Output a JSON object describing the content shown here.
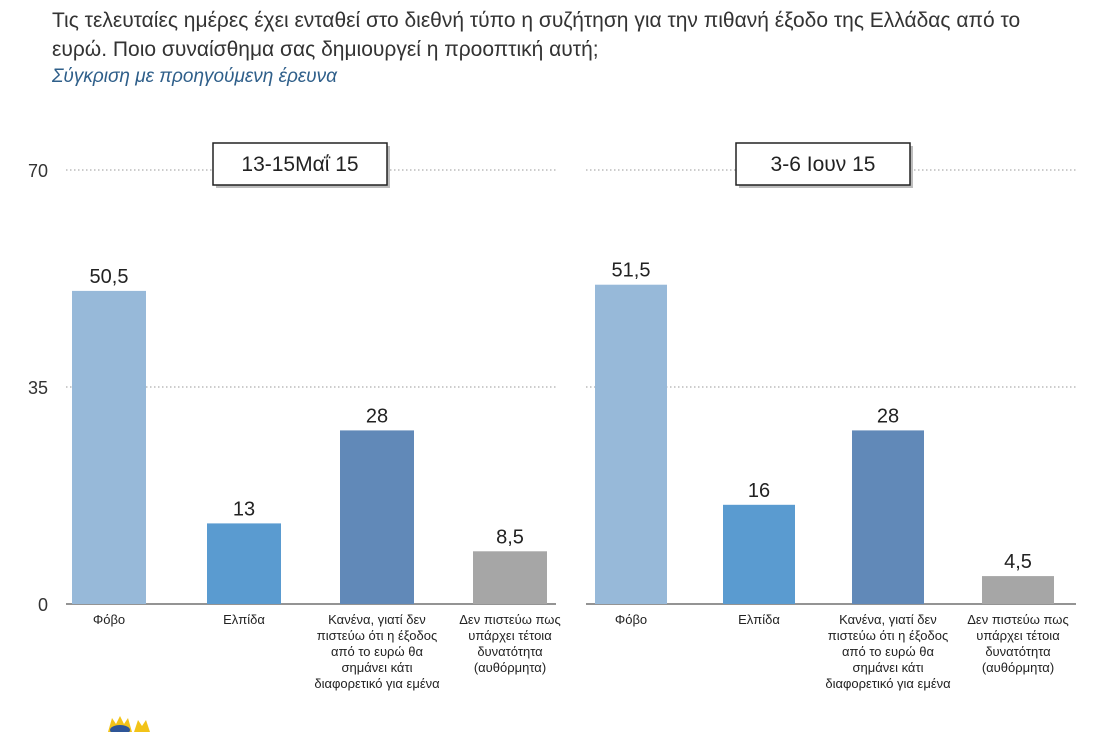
{
  "header": {
    "question": "Τις τελευταίες ημέρες έχει ενταθεί στο διεθνή τύπο η συζήτηση για την πιθανή έξοδο της Ελλάδας από το ευρώ. Ποιο συναίσθημα σας δημιουργεί η προοπτική αυτή;",
    "subtitle": "Σύγκριση με προηγούμενη έρευνα"
  },
  "chart_data": [
    {
      "type": "bar",
      "title": "13-15Μαΐ 15",
      "categories": [
        "Φόβο",
        "Ελπίδα",
        "Κανένα, γιατί δεν πιστεύω ότι η έξοδος από το ευρώ θα σημάνει κάτι διαφορετικό για εμένα",
        "Δεν πιστεύω πως υπάρχει τέτοια δυνατότητα (αυθόρμητα)"
      ],
      "values": [
        50.5,
        13,
        28,
        8.5
      ],
      "value_labels": [
        "50,5",
        "13",
        "28",
        "8,5"
      ],
      "colors": [
        "#97b9d9",
        "#5a9bd0",
        "#6189b8",
        "#a6a6a6"
      ],
      "ylim": [
        0,
        70
      ],
      "yticks": [
        0,
        35,
        70
      ],
      "grid": true
    },
    {
      "type": "bar",
      "title": "3-6 Ιουν 15",
      "categories": [
        "Φόβο",
        "Ελπίδα",
        "Κανένα, γιατί δεν πιστεύω ότι η έξοδος από το ευρώ θα σημάνει κάτι διαφορετικό για εμένα",
        "Δεν πιστεύω πως υπάρχει τέτοια δυνατότητα (αυθόρμητα)"
      ],
      "values": [
        51.5,
        16,
        28,
        4.5
      ],
      "value_labels": [
        "51,5",
        "16",
        "28",
        "4,5"
      ],
      "colors": [
        "#97b9d9",
        "#5a9bd0",
        "#6189b8",
        "#a6a6a6"
      ],
      "ylim": [
        0,
        70
      ],
      "yticks": [
        0,
        35,
        70
      ],
      "grid": true
    }
  ]
}
